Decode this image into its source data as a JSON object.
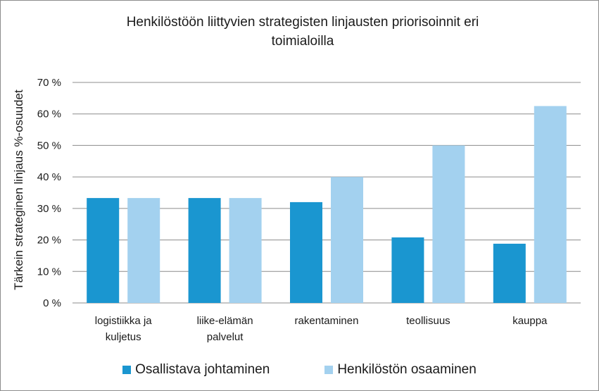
{
  "chart_data": {
    "type": "bar",
    "title": "Henkilöstöön liittyvien strategisten linjausten priorisoinnit eri toimialoilla",
    "title_lines": [
      "Henkilöstöön liittyvien strategisten linjausten priorisoinnit eri",
      "toimialoilla"
    ],
    "ylabel": "Tärkein strateginen linjaus %-osuudet",
    "xlabel": "",
    "ylim": [
      0,
      70
    ],
    "yticks": [
      "0 %",
      "10 %",
      "20 %",
      "30 %",
      "40 %",
      "50 %",
      "60 %",
      "70 %"
    ],
    "categories": [
      [
        "logistiikka ja",
        "kuljetus"
      ],
      [
        "liike-elämän",
        "palvelut"
      ],
      [
        "rakentaminen"
      ],
      [
        "teollisuus"
      ],
      [
        "kauppa"
      ]
    ],
    "series": [
      {
        "name": "Osallistava johtaminen",
        "color": "#1a96d0",
        "values": [
          33.3,
          33.3,
          32.0,
          20.8,
          18.8
        ]
      },
      {
        "name": "Henkilöstön osaaminen",
        "color": "#a3d1ef",
        "values": [
          33.3,
          33.3,
          40.0,
          50.0,
          62.5
        ]
      }
    ],
    "grid": true,
    "legend_position": "bottom"
  }
}
